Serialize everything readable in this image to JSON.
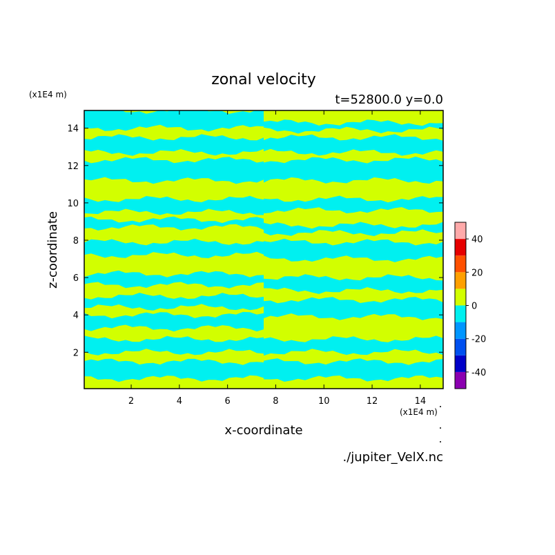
{
  "chart_data": {
    "type": "heatmap",
    "title": "zonal velocity",
    "subtitle": "t=52800.0 y=0.0",
    "xlabel": "x-coordinate",
    "ylabel": "z-coordinate",
    "x_unit": "(x1E4 m)",
    "y_unit": "(x1E4 m)",
    "xlim": [
      0.05,
      14.95
    ],
    "ylim": [
      0.05,
      14.95
    ],
    "x_ticks": [
      "2",
      "4",
      "6",
      "8",
      "10",
      "12",
      "14"
    ],
    "y_ticks": [
      "2",
      "4",
      "6",
      "8",
      "10",
      "12",
      "14"
    ],
    "x_tick_values": [
      2,
      4,
      6,
      8,
      10,
      12,
      14
    ],
    "y_tick_values": [
      2,
      4,
      6,
      8,
      10,
      12,
      14
    ],
    "source_file": "./jupiter_VelX.nc",
    "colorbar": {
      "min": -50,
      "max": 50,
      "step": 10,
      "tick_labels": [
        "40",
        "20",
        "0",
        "-20",
        "-40"
      ],
      "tick_values": [
        40,
        20,
        0,
        -20,
        -40
      ],
      "colors": [
        "#8B00B0",
        "#0000C8",
        "#0050F0",
        "#0096FF",
        "#00F0F0",
        "#D2FF00",
        "#FFA000",
        "#FF5000",
        "#E60000",
        "#FFAAAA"
      ]
    },
    "field_colors": {
      "positive": "#D2FF00",
      "negative": "#00F0F0"
    },
    "symmetry_x": 7.5,
    "left_half_bands_negative": [
      [
        0.6,
        1.5
      ],
      [
        2.0,
        2.7
      ],
      [
        3.3,
        4.0
      ],
      [
        4.4,
        5.0
      ],
      [
        5.6,
        6.2
      ],
      [
        7.2,
        7.9
      ],
      [
        8.7,
        9.1
      ],
      [
        9.5,
        10.2
      ],
      [
        11.2,
        12.3
      ],
      [
        12.7,
        13.5
      ],
      [
        14.0,
        14.95
      ]
    ],
    "right_half_bands_negative": [
      [
        0.6,
        1.5
      ],
      [
        2.0,
        2.7
      ],
      [
        3.9,
        4.8
      ],
      [
        5.3,
        6.0
      ],
      [
        7.0,
        7.9
      ],
      [
        8.4,
        8.8
      ],
      [
        9.6,
        10.2
      ],
      [
        11.2,
        12.3
      ],
      [
        12.7,
        13.5
      ],
      [
        13.9,
        14.3
      ]
    ]
  }
}
